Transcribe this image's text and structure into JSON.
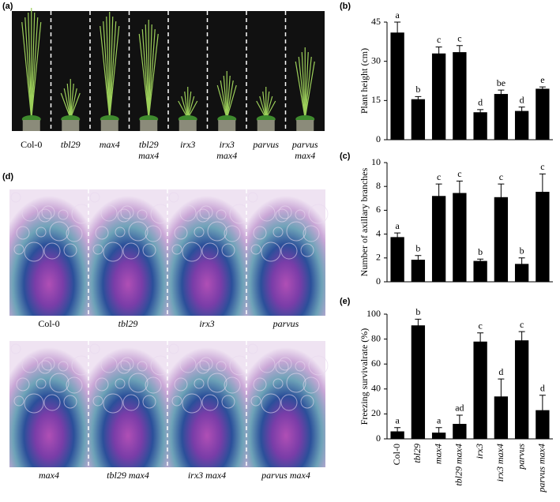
{
  "panels": {
    "a": "(a)",
    "b": "(b)",
    "c": "(c)",
    "d": "(d)",
    "e": "(e)"
  },
  "photo_labels": [
    [
      "Col-0"
    ],
    [
      "tbl29"
    ],
    [
      "max4"
    ],
    [
      "tbl29",
      "max4"
    ],
    [
      "irx3"
    ],
    [
      "irx3",
      "max4"
    ],
    [
      "parvus"
    ],
    [
      "parvus",
      "max4"
    ]
  ],
  "micrograph_labels": [
    "Col-0",
    "tbl29",
    "irx3",
    "parvus",
    "max4",
    "tbl29 max4",
    "irx3 max4",
    "parvus max4"
  ],
  "chart_data": [
    {
      "type": "bar",
      "ylabel": "Plant height (cm)",
      "categories": [
        null,
        null,
        null,
        null,
        null,
        null,
        null,
        null
      ],
      "values": [
        41,
        15.5,
        33,
        33.5,
        10.5,
        17.5,
        11,
        19.5
      ],
      "errors": [
        4,
        1,
        2.5,
        2.5,
        1,
        1.5,
        1.5,
        0.7
      ],
      "annotations": [
        "a",
        "b",
        "c",
        "c",
        "d",
        "be",
        "d",
        "e"
      ],
      "color": "#000000",
      "ylim": [
        0,
        45
      ],
      "yticks": [
        0,
        15,
        30,
        45
      ]
    },
    {
      "type": "bar",
      "ylabel": "Number of axillary branches",
      "categories": [
        null,
        null,
        null,
        null,
        null,
        null,
        null,
        null
      ],
      "values": [
        3.75,
        1.85,
        7.2,
        7.45,
        1.75,
        7.1,
        1.5,
        7.55
      ],
      "errors": [
        0.35,
        0.35,
        1,
        1,
        0.15,
        1.1,
        0.5,
        1.5
      ],
      "annotations": [
        "a",
        "b",
        "c",
        "c",
        "b",
        "c",
        "b",
        "c"
      ],
      "color": "#000000",
      "ylim": [
        0,
        10
      ],
      "yticks": [
        0,
        2,
        4,
        6,
        8,
        10
      ]
    },
    {
      "type": "bar",
      "ylabel": "Freezing survivalrate (%)",
      "categories": [
        "Col-0",
        "tbl29",
        "max4",
        "tbl29 max4",
        "irx3",
        "irx3 max4",
        "parvus",
        "parvus max4"
      ],
      "values": [
        6,
        91,
        5,
        12,
        78,
        34,
        79,
        23
      ],
      "errors": [
        3,
        5,
        4,
        7,
        7,
        14,
        7,
        12
      ],
      "annotations": [
        "a",
        "b",
        "a",
        "ad",
        "c",
        "d",
        "c",
        "d"
      ],
      "color": "#000000",
      "ylim": [
        0,
        100
      ],
      "yticks": [
        0,
        20,
        40,
        60,
        80,
        100
      ]
    }
  ]
}
